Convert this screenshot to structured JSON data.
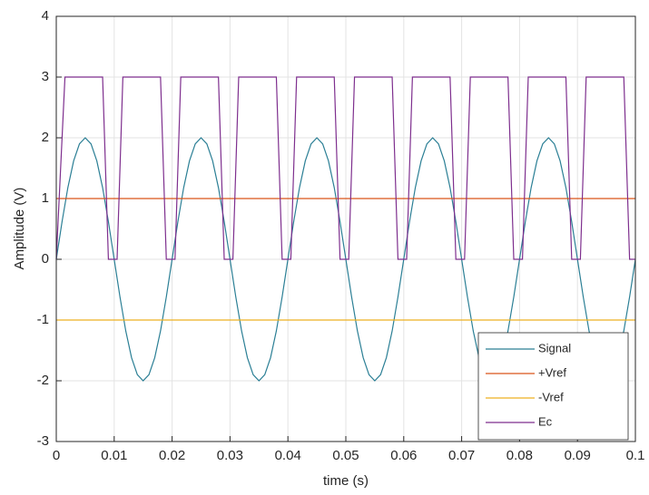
{
  "chart_data": {
    "type": "line",
    "xlabel": "time (s)",
    "ylabel": "Amplitude (V)",
    "xlim": [
      0,
      0.1
    ],
    "ylim": [
      -3,
      4
    ],
    "xticks": [
      0,
      0.01,
      0.02,
      0.03,
      0.04,
      0.05,
      0.06,
      0.07,
      0.08,
      0.09,
      0.1
    ],
    "yticks": [
      -3,
      -2,
      -1,
      0,
      1,
      2,
      3,
      4
    ],
    "grid": true,
    "legend": "lower right",
    "series": [
      {
        "name": "Signal",
        "color": "#2b7f95",
        "x": [
          0,
          0.001,
          0.002,
          0.003,
          0.004,
          0.005,
          0.006,
          0.007,
          0.008,
          0.009,
          0.01,
          0.011,
          0.012,
          0.013,
          0.014,
          0.015,
          0.016,
          0.017,
          0.018,
          0.019,
          0.02,
          0.021,
          0.022,
          0.023,
          0.024,
          0.025,
          0.026,
          0.027,
          0.028,
          0.029,
          0.03,
          0.031,
          0.032,
          0.033,
          0.034,
          0.035,
          0.036,
          0.037,
          0.038,
          0.039,
          0.04,
          0.041,
          0.042,
          0.043,
          0.044,
          0.045,
          0.046,
          0.047,
          0.048,
          0.049,
          0.05,
          0.051,
          0.052,
          0.053,
          0.054,
          0.055,
          0.056,
          0.057,
          0.058,
          0.059,
          0.06,
          0.061,
          0.062,
          0.063,
          0.064,
          0.065,
          0.066,
          0.067,
          0.068,
          0.069,
          0.07,
          0.071,
          0.072,
          0.073,
          0.074,
          0.075,
          0.076,
          0.077,
          0.078,
          0.079,
          0.08,
          0.081,
          0.082,
          0.083,
          0.084,
          0.085,
          0.086,
          0.087,
          0.088,
          0.089,
          0.09,
          0.091,
          0.092,
          0.093,
          0.094,
          0.095,
          0.096,
          0.097,
          0.098,
          0.099,
          0.1
        ],
        "values": [
          0,
          0.62,
          1.18,
          1.62,
          1.9,
          2,
          1.9,
          1.62,
          1.18,
          0.62,
          0,
          -0.62,
          -1.18,
          -1.62,
          -1.9,
          -2,
          -1.9,
          -1.62,
          -1.18,
          -0.62,
          0,
          0.62,
          1.18,
          1.62,
          1.9,
          2,
          1.9,
          1.62,
          1.18,
          0.62,
          0,
          -0.62,
          -1.18,
          -1.62,
          -1.9,
          -2,
          -1.9,
          -1.62,
          -1.18,
          -0.62,
          0,
          0.62,
          1.18,
          1.62,
          1.9,
          2,
          1.9,
          1.62,
          1.18,
          0.62,
          0,
          -0.62,
          -1.18,
          -1.62,
          -1.9,
          -2,
          -1.9,
          -1.62,
          -1.18,
          -0.62,
          0,
          0.62,
          1.18,
          1.62,
          1.9,
          2,
          1.9,
          1.62,
          1.18,
          0.62,
          0,
          -0.62,
          -1.18,
          -1.62,
          -1.9,
          -2,
          -1.9,
          -1.62,
          -1.18,
          -0.62,
          0,
          0.62,
          1.18,
          1.62,
          1.9,
          2,
          1.9,
          1.62,
          1.18,
          0.62,
          0,
          -0.62,
          -1.18,
          -1.62,
          -1.9,
          -2,
          -1.9,
          -1.62,
          -1.18,
          -0.62,
          0
        ]
      },
      {
        "name": "+Vref",
        "color": "#d95319",
        "x": [
          0,
          0.1
        ],
        "values": [
          1,
          1
        ]
      },
      {
        "name": "-Vref",
        "color": "#edb120",
        "x": [
          0,
          0.1
        ],
        "values": [
          -1,
          -1
        ]
      },
      {
        "name": "Ec",
        "color": "#7e2f8e",
        "x": [
          0,
          0.0015,
          0.008,
          0.009,
          0.0105,
          0.0115,
          0.018,
          0.019,
          0.0205,
          0.0215,
          0.028,
          0.029,
          0.0305,
          0.0315,
          0.038,
          0.039,
          0.0405,
          0.0415,
          0.048,
          0.049,
          0.0505,
          0.0515,
          0.058,
          0.059,
          0.0605,
          0.0615,
          0.068,
          0.069,
          0.0705,
          0.0715,
          0.078,
          0.079,
          0.0805,
          0.0815,
          0.088,
          0.089,
          0.0905,
          0.0915,
          0.098,
          0.099,
          0.1
        ],
        "values": [
          0,
          3,
          3,
          0,
          0,
          3,
          3,
          0,
          0,
          3,
          3,
          0,
          0,
          3,
          3,
          0,
          0,
          3,
          3,
          0,
          0,
          3,
          3,
          0,
          0,
          3,
          3,
          0,
          0,
          3,
          3,
          0,
          0,
          3,
          3,
          0,
          0,
          3,
          3,
          0,
          0
        ]
      }
    ]
  }
}
